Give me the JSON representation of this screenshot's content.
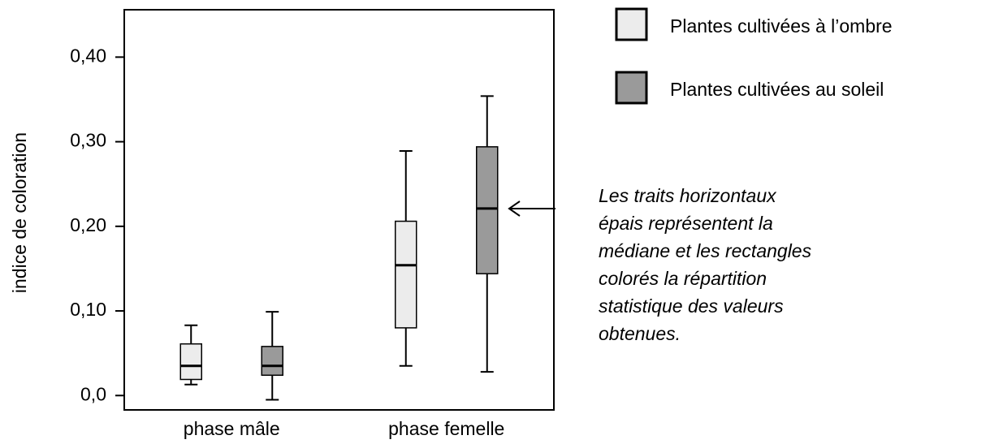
{
  "chart_data": {
    "type": "box",
    "y_label": "indice de coloration",
    "categories": [
      "phase mâle",
      "phase femelle"
    ],
    "series": [
      {
        "name": "Plantes cultivées à l’ombre",
        "color": "#ececec",
        "values": [
          {
            "min": 0.013,
            "q1": 0.019,
            "median": 0.035,
            "q3": 0.061,
            "max": 0.083
          },
          {
            "min": 0.035,
            "q1": 0.08,
            "median": 0.154,
            "q3": 0.206,
            "max": 0.289
          }
        ]
      },
      {
        "name": "Plantes cultivées au soleil",
        "color": "#9a9a9a",
        "values": [
          {
            "min": -0.005,
            "q1": 0.024,
            "median": 0.035,
            "q3": 0.058,
            "max": 0.099
          },
          {
            "min": 0.028,
            "q1": 0.144,
            "median": 0.221,
            "q3": 0.294,
            "max": 0.354
          }
        ]
      }
    ],
    "ylim": [
      -0.017,
      0.456
    ],
    "yticks": [
      {
        "value": 0,
        "label": "0,0"
      },
      {
        "value": 0.1,
        "label": "0,10"
      },
      {
        "value": 0.2,
        "label": "0,20"
      },
      {
        "value": 0.3,
        "label": "0,30"
      },
      {
        "value": 0.4,
        "label": "0,40"
      }
    ],
    "grid": false,
    "legend": "right",
    "annotation": [
      "Les traits horizontaux",
      "épais représentent la",
      "médiane et les rectangles",
      "colorés la répartition",
      "statistique des valeurs",
      "obtenues."
    ]
  }
}
